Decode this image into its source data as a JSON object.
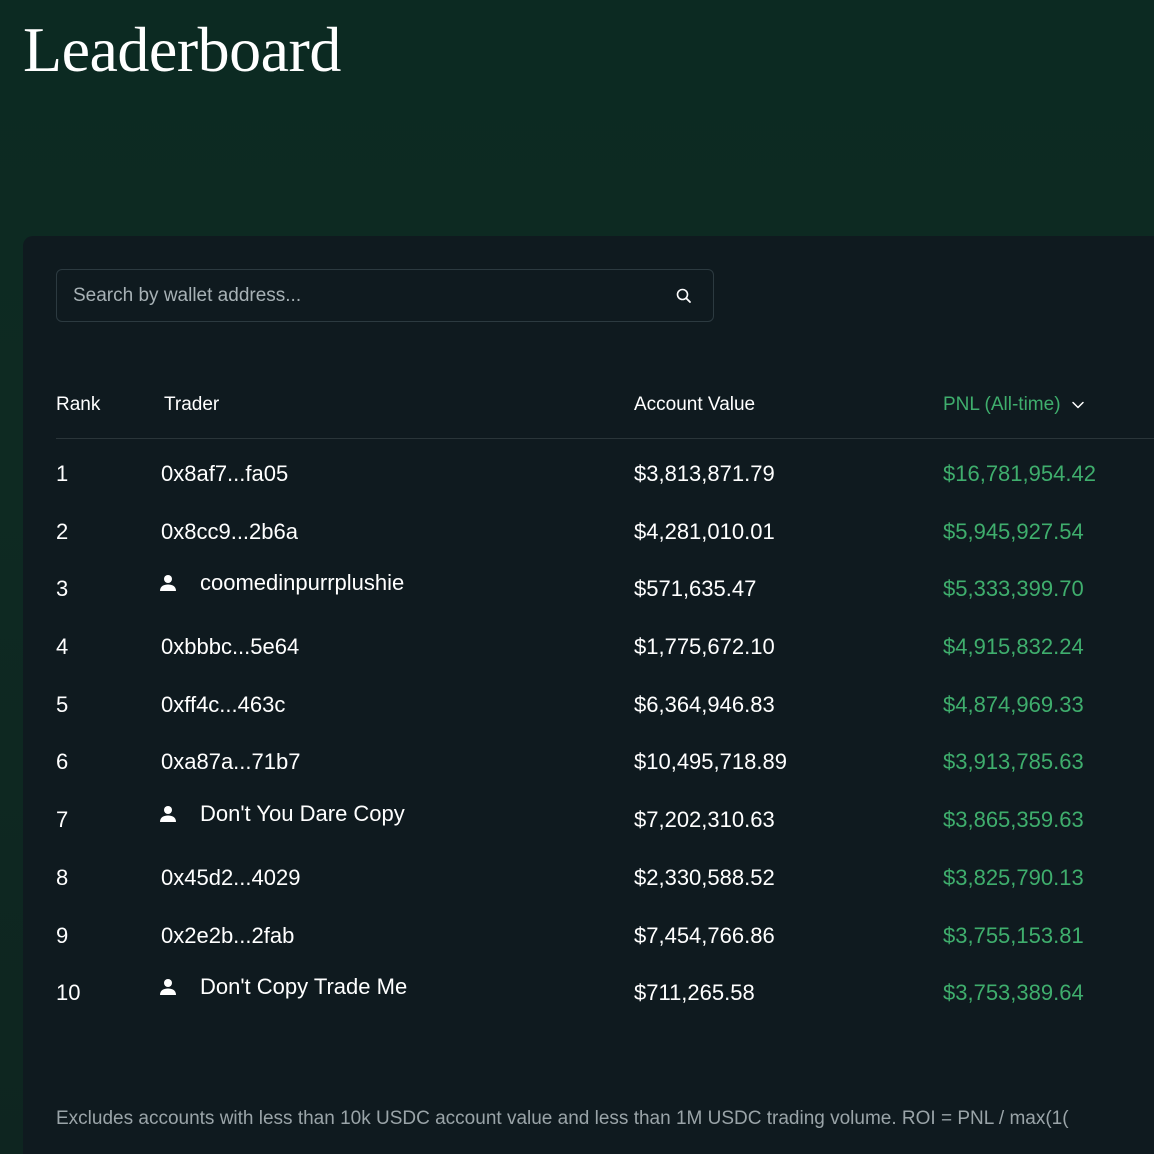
{
  "page": {
    "title": "Leaderboard"
  },
  "search": {
    "placeholder": "Search by wallet address..."
  },
  "table": {
    "headers": {
      "rank": "Rank",
      "trader": "Trader",
      "account_value": "Account Value",
      "pnl": "PNL (All-time)"
    },
    "rows": [
      {
        "rank": "1",
        "trader": "0x8af7...fa05",
        "named": false,
        "account_value": "$3,813,871.79",
        "pnl": "$16,781,954.42"
      },
      {
        "rank": "2",
        "trader": "0x8cc9...2b6a",
        "named": false,
        "account_value": "$4,281,010.01",
        "pnl": "$5,945,927.54"
      },
      {
        "rank": "3",
        "trader": "coomedinpurrplushie",
        "named": true,
        "account_value": "$571,635.47",
        "pnl": "$5,333,399.70"
      },
      {
        "rank": "4",
        "trader": "0xbbbc...5e64",
        "named": false,
        "account_value": "$1,775,672.10",
        "pnl": "$4,915,832.24"
      },
      {
        "rank": "5",
        "trader": "0xff4c...463c",
        "named": false,
        "account_value": "$6,364,946.83",
        "pnl": "$4,874,969.33"
      },
      {
        "rank": "6",
        "trader": "0xa87a...71b7",
        "named": false,
        "account_value": "$10,495,718.89",
        "pnl": "$3,913,785.63"
      },
      {
        "rank": "7",
        "trader": "Don't You Dare Copy",
        "named": true,
        "account_value": "$7,202,310.63",
        "pnl": "$3,865,359.63"
      },
      {
        "rank": "8",
        "trader": "0x45d2...4029",
        "named": false,
        "account_value": "$2,330,588.52",
        "pnl": "$3,825,790.13"
      },
      {
        "rank": "9",
        "trader": "0x2e2b...2fab",
        "named": false,
        "account_value": "$7,454,766.86",
        "pnl": "$3,755,153.81"
      },
      {
        "rank": "10",
        "trader": "Don't Copy Trade Me",
        "named": true,
        "account_value": "$711,265.58",
        "pnl": "$3,753,389.64"
      }
    ]
  },
  "footnote": "Excludes accounts with less than 10k USDC account value and less than 1M USDC trading volume. ROI = PNL / max(1(",
  "colors": {
    "background": "#0c2a22",
    "panel": "#0f1a1f",
    "positive": "#3fae6d",
    "muted": "#9aa4a8"
  },
  "icons": {
    "search": "search-icon",
    "sort": "chevron-down-icon",
    "user": "user-icon"
  }
}
